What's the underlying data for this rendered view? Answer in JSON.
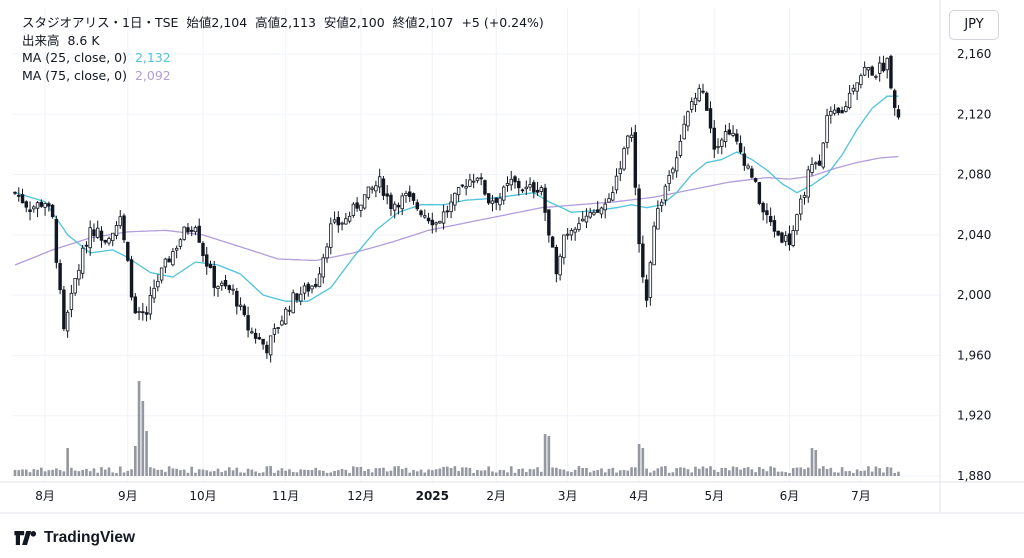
{
  "header": {
    "title_line": "スタジオアリス・1日・TSE",
    "open_label": "始値",
    "open": "2,104",
    "high_label": "高値",
    "high": "2,113",
    "low_label": "安値",
    "low": "2,100",
    "close_label": "終値",
    "close": "2,107",
    "change": "+5 (+0.24%)",
    "volume_label": "出来高",
    "volume": "8.6 K",
    "ma1_label": "MA (25, close, 0)",
    "ma1_value": "2,132",
    "ma2_label": "MA (75, close, 0)",
    "ma2_value": "2,092"
  },
  "currency": "JPY",
  "brand": "TradingView",
  "colors": {
    "up": "#131722",
    "down": "#131722",
    "ma25": "#4dc3dc",
    "ma75": "#b39ddb",
    "volume": "#787b86"
  },
  "chart_data": {
    "type": "candlestick",
    "y_ticks": [
      1880,
      1920,
      1960,
      2000,
      2040,
      2080,
      2120,
      2160
    ],
    "y_tick_labels": [
      "1,880",
      "1,920",
      "1,960",
      "2,000",
      "2,040",
      "2,080",
      "2,120",
      "2,160"
    ],
    "ylim": [
      1875,
      2167
    ],
    "x_months": [
      {
        "label": "8月",
        "index": 8,
        "bold": false
      },
      {
        "label": "9月",
        "index": 30,
        "bold": false
      },
      {
        "label": "10月",
        "index": 50,
        "bold": false
      },
      {
        "label": "11月",
        "index": 72,
        "bold": false
      },
      {
        "label": "12月",
        "index": 92,
        "bold": false
      },
      {
        "label": "2025",
        "index": 111,
        "bold": true
      },
      {
        "label": "2月",
        "index": 128,
        "bold": false
      },
      {
        "label": "3月",
        "index": 147,
        "bold": false
      },
      {
        "label": "4月",
        "index": 166,
        "bold": false
      },
      {
        "label": "5月",
        "index": 186,
        "bold": false
      },
      {
        "label": "6月",
        "index": 206,
        "bold": false
      },
      {
        "label": "7月",
        "index": 225,
        "bold": false
      }
    ],
    "bar_count": 238,
    "close_anchors": [
      [
        0,
        2068
      ],
      [
        4,
        2058
      ],
      [
        8,
        2062
      ],
      [
        10,
        2050
      ],
      [
        13,
        1975
      ],
      [
        16,
        2010
      ],
      [
        20,
        2045
      ],
      [
        24,
        2038
      ],
      [
        28,
        2050
      ],
      [
        30,
        2020
      ],
      [
        32,
        1985
      ],
      [
        35,
        1988
      ],
      [
        37,
        2005
      ],
      [
        40,
        2020
      ],
      [
        45,
        2042
      ],
      [
        48,
        2048
      ],
      [
        50,
        2028
      ],
      [
        53,
        2008
      ],
      [
        58,
        2002
      ],
      [
        62,
        1978
      ],
      [
        67,
        1965
      ],
      [
        70,
        1980
      ],
      [
        74,
        1998
      ],
      [
        80,
        2008
      ],
      [
        84,
        2045
      ],
      [
        88,
        2050
      ],
      [
        92,
        2063
      ],
      [
        97,
        2075
      ],
      [
        100,
        2060
      ],
      [
        104,
        2065
      ],
      [
        108,
        2056
      ],
      [
        112,
        2048
      ],
      [
        116,
        2060
      ],
      [
        120,
        2075
      ],
      [
        123,
        2080
      ],
      [
        126,
        2063
      ],
      [
        129,
        2065
      ],
      [
        132,
        2075
      ],
      [
        136,
        2070
      ],
      [
        140,
        2072
      ],
      [
        142,
        2038
      ],
      [
        144,
        2018
      ],
      [
        146,
        2040
      ],
      [
        150,
        2050
      ],
      [
        154,
        2052
      ],
      [
        158,
        2063
      ],
      [
        162,
        2095
      ],
      [
        164,
        2110
      ],
      [
        166,
        2032
      ],
      [
        168,
        2000
      ],
      [
        170,
        2048
      ],
      [
        174,
        2080
      ],
      [
        176,
        2095
      ],
      [
        180,
        2128
      ],
      [
        183,
        2138
      ],
      [
        186,
        2100
      ],
      [
        190,
        2110
      ],
      [
        193,
        2095
      ],
      [
        196,
        2080
      ],
      [
        199,
        2055
      ],
      [
        203,
        2040
      ],
      [
        206,
        2036
      ],
      [
        208,
        2050
      ],
      [
        211,
        2080
      ],
      [
        214,
        2090
      ],
      [
        216,
        2118
      ],
      [
        220,
        2120
      ],
      [
        223,
        2140
      ],
      [
        226,
        2150
      ],
      [
        229,
        2148
      ],
      [
        232,
        2155
      ],
      [
        234,
        2128
      ],
      [
        236,
        2107
      ]
    ],
    "ma25": [
      [
        0,
        2068
      ],
      [
        8,
        2062
      ],
      [
        14,
        2040
      ],
      [
        20,
        2028
      ],
      [
        26,
        2030
      ],
      [
        30,
        2025
      ],
      [
        36,
        2015
      ],
      [
        42,
        2012
      ],
      [
        48,
        2022
      ],
      [
        54,
        2020
      ],
      [
        60,
        2014
      ],
      [
        66,
        2000
      ],
      [
        72,
        1996
      ],
      [
        78,
        1996
      ],
      [
        84,
        2005
      ],
      [
        90,
        2025
      ],
      [
        96,
        2043
      ],
      [
        102,
        2055
      ],
      [
        108,
        2060
      ],
      [
        114,
        2060
      ],
      [
        120,
        2063
      ],
      [
        126,
        2064
      ],
      [
        132,
        2066
      ],
      [
        138,
        2068
      ],
      [
        142,
        2062
      ],
      [
        148,
        2055
      ],
      [
        154,
        2056
      ],
      [
        160,
        2058
      ],
      [
        164,
        2060
      ],
      [
        168,
        2058
      ],
      [
        172,
        2060
      ],
      [
        176,
        2068
      ],
      [
        180,
        2080
      ],
      [
        184,
        2088
      ],
      [
        188,
        2090
      ],
      [
        192,
        2095
      ],
      [
        196,
        2090
      ],
      [
        200,
        2083
      ],
      [
        204,
        2074
      ],
      [
        208,
        2068
      ],
      [
        212,
        2073
      ],
      [
        216,
        2080
      ],
      [
        220,
        2093
      ],
      [
        224,
        2110
      ],
      [
        228,
        2124
      ],
      [
        232,
        2132
      ],
      [
        235,
        2132
      ]
    ],
    "ma75": [
      [
        0,
        2020
      ],
      [
        10,
        2030
      ],
      [
        20,
        2038
      ],
      [
        30,
        2042
      ],
      [
        40,
        2043
      ],
      [
        50,
        2040
      ],
      [
        60,
        2032
      ],
      [
        70,
        2024
      ],
      [
        80,
        2023
      ],
      [
        90,
        2028
      ],
      [
        100,
        2035
      ],
      [
        110,
        2043
      ],
      [
        120,
        2048
      ],
      [
        130,
        2053
      ],
      [
        140,
        2058
      ],
      [
        150,
        2060
      ],
      [
        160,
        2062
      ],
      [
        170,
        2065
      ],
      [
        180,
        2070
      ],
      [
        190,
        2075
      ],
      [
        200,
        2078
      ],
      [
        206,
        2077
      ],
      [
        212,
        2079
      ],
      [
        218,
        2084
      ],
      [
        224,
        2088
      ],
      [
        230,
        2091
      ],
      [
        235,
        2092
      ]
    ],
    "volume_spikes": [
      [
        14,
        28
      ],
      [
        32,
        30
      ],
      [
        33,
        95
      ],
      [
        34,
        75
      ],
      [
        35,
        45
      ],
      [
        141,
        42
      ],
      [
        142,
        40
      ],
      [
        166,
        32
      ],
      [
        167,
        28
      ],
      [
        212,
        28
      ],
      [
        213,
        26
      ]
    ]
  }
}
